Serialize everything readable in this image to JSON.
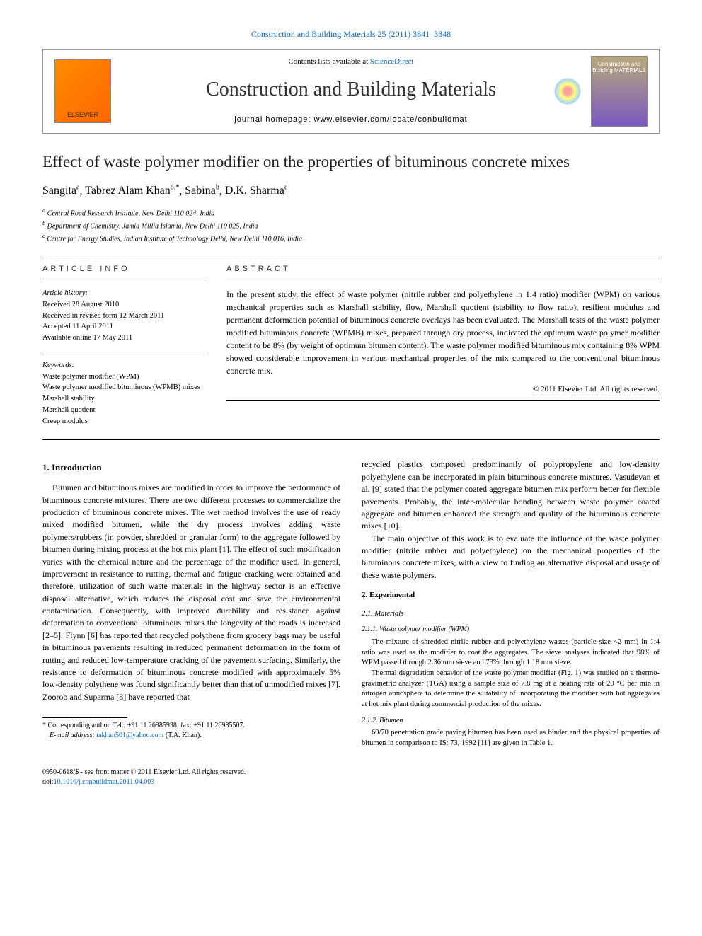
{
  "header": {
    "citation_prefix": "Construction and Building Materials",
    "citation_suffix": "25 (2011) 3841–3848",
    "contents_prefix": "Contents lists available at ",
    "contents_link": "ScienceDirect",
    "journal_name": "Construction and Building Materials",
    "homepage_label": "journal homepage: ",
    "homepage_url": "www.elsevier.com/locate/conbuildmat",
    "publisher_logo_text": "ELSEVIER",
    "cover_text": "Construction and Building MATERIALS"
  },
  "article": {
    "title": "Effect of waste polymer modifier on the properties of bituminous concrete mixes",
    "authors_html": "Sangita <sup>a</sup>, Tabrez Alam Khan <sup>b,*</sup>, Sabina <sup>b</sup>, D.K. Sharma <sup>c</sup>",
    "authors": [
      {
        "name": "Sangita",
        "aff": "a"
      },
      {
        "name": "Tabrez Alam Khan",
        "aff": "b,*"
      },
      {
        "name": "Sabina",
        "aff": "b"
      },
      {
        "name": "D.K. Sharma",
        "aff": "c"
      }
    ],
    "affiliations": [
      {
        "sup": "a",
        "text": "Central Road Research Institute, New Delhi 110 024, India"
      },
      {
        "sup": "b",
        "text": "Department of Chemistry, Jamia Millia Islamia, New Delhi 110 025, India"
      },
      {
        "sup": "c",
        "text": "Centre for Energy Studies, Indian Institute of Technology Delhi, New Delhi 110 016, India"
      }
    ]
  },
  "info": {
    "section_label": "ARTICLE INFO",
    "history_label": "Article history:",
    "history": [
      "Received 28 August 2010",
      "Received in revised form 12 March 2011",
      "Accepted 11 April 2011",
      "Available online 17 May 2011"
    ],
    "keywords_label": "Keywords:",
    "keywords": [
      "Waste polymer modifier (WPM)",
      "Waste polymer modified bituminous (WPMB) mixes",
      "Marshall stability",
      "Marshall quotient",
      "Creep modulus"
    ]
  },
  "abstract": {
    "section_label": "ABSTRACT",
    "text": "In the present study, the effect of waste polymer (nitrile rubber and polyethylene in 1:4 ratio) modifier (WPM) on various mechanical properties such as Marshall stability, flow, Marshall quotient (stability to flow ratio), resilient modulus and permanent deformation potential of bituminous concrete overlays has been evaluated. The Marshall tests of the waste polymer modified bituminous concrete (WPMB) mixes, prepared through dry process, indicated the optimum waste polymer modifier content to be 8% (by weight of optimum bitumen content). The waste polymer modified bituminous mix containing 8% WPM showed considerable improvement in various mechanical properties of the mix compared to the conventional bituminous concrete mix.",
    "copyright": "© 2011 Elsevier Ltd. All rights reserved."
  },
  "body": {
    "intro_heading": "1. Introduction",
    "intro_p1": "Bitumen and bituminous mixes are modified in order to improve the performance of bituminous concrete mixtures. There are two different processes to commercialize the production of bituminous concrete mixes. The wet method involves the use of ready mixed modified bitumen, while the dry process involves adding waste polymers/rubbers (in powder, shredded or granular form) to the aggregate followed by bitumen during mixing process at the hot mix plant [1]. The effect of such modification varies with the chemical nature and the percentage of the modifier used. In general, improvement in resistance to rutting, thermal and fatigue cracking were obtained and therefore, utilization of such waste materials in the highway sector is an effective disposal alternative, which reduces the disposal cost and save the environmental contamination. Consequently, with improved durability and resistance against deformation to conventional bituminous mixes the longevity of the roads is increased [2–5]. Flynn [6] has reported that recycled polythene from grocery bags may be useful in bituminous pavements resulting in reduced permanent deformation in the form of rutting and reduced low-temperature cracking of the pavement surfacing. Similarly, the resistance to deformation of bituminous concrete modified with approximately 5% low-density polythene was found significantly better than that of unmodified mixes [7]. Zoorob and Suparma [8] have reported that",
    "intro_p2": "recycled plastics composed predominantly of polypropylene and low-density polyethylene can be incorporated in plain bituminous concrete mixtures. Vasudevan et al. [9] stated that the polymer coated aggregate bitumen mix perform better for flexible pavements. Probably, the inter-molecular bonding between waste polymer coated aggregate and bitumen enhanced the strength and quality of the bituminous concrete mixes [10].",
    "intro_p3": "The main objective of this work is to evaluate the influence of the waste polymer modifier (nitrile rubber and polyethylene) on the mechanical properties of the bituminous concrete mixes, with a view to finding an alternative disposal and usage of these waste polymers.",
    "exp_heading": "2. Experimental",
    "mat_heading": "2.1. Materials",
    "wpm_heading": "2.1.1. Waste polymer modifier (WPM)",
    "wpm_p1": "The mixture of shredded nitrile rubber and polyethylene wastes (particle size <2 mm) in 1:4 ratio was used as the modifier to coat the aggregates. The sieve analyses indicated that 98% of WPM passed through 2.36 mm sieve and 73% through 1.18 mm sieve.",
    "wpm_p2": "Thermal degradation behavior of the waste polymer modifier (Fig. 1) was studied on a thermo-gravimetric analyzer (TGA) using a sample size of 7.8 mg at a heating rate of 20 °C per min in nitrogen atmosphere to determine the suitability of incorporating the modifier with hot aggregates at hot mix plant during commercial production of the mixes.",
    "bit_heading": "2.1.2. Bitumen",
    "bit_p1": "60/70 penetration grade paving bitumen has been used as binder and the physical properties of bitumen in comparison to IS: 73, 1992 [11] are given in Table 1."
  },
  "footnote": {
    "corr_label": "* Corresponding author. Tel.: +91 11 26985938; fax: +91 11 26985507.",
    "email_label": "E-mail address: ",
    "email": "takhan501@yahoo.com",
    "email_suffix": " (T.A. Khan)."
  },
  "footer": {
    "left_line1": "0950-0618/$ - see front matter © 2011 Elsevier Ltd. All rights reserved.",
    "left_line2_prefix": "doi:",
    "doi": "10.1016/j.conbuildmat.2011.04.003"
  },
  "refs": {
    "r1": "[1]",
    "r25": "[2–5]",
    "r6": "[6]",
    "r7": "[7]",
    "r8": "[8]",
    "r9": "[9]",
    "r10": "[10]",
    "r11": "[11]",
    "fig1": "Fig. 1",
    "tab1": "Table 1"
  },
  "colors": {
    "link": "#0066cc",
    "text": "#000000",
    "background": "#ffffff",
    "rule": "#000000"
  }
}
